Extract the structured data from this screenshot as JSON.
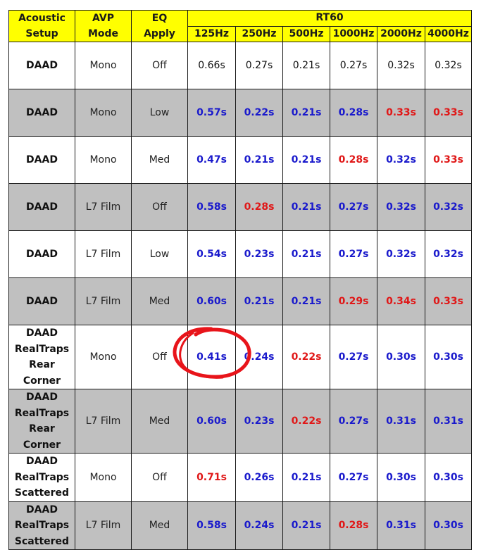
{
  "colors": {
    "header_bg": "#ffff00",
    "shade_bg": "#c0c0c0",
    "blue": "#1a1acc",
    "red": "#e01818",
    "circle": "#e8141a"
  },
  "header": {
    "col1": [
      "Acoustic",
      "Setup"
    ],
    "col2": [
      "AVP",
      "Mode"
    ],
    "col3": [
      "EQ",
      "Apply"
    ],
    "group": "RT60",
    "freqs": [
      "125Hz",
      "250Hz",
      "500Hz",
      "1000Hz",
      "2000Hz",
      "4000Hz"
    ]
  },
  "chart_data": {
    "type": "table",
    "columns": [
      "Acoustic Setup",
      "AVP Mode",
      "EQ Apply",
      "125Hz",
      "250Hz",
      "500Hz",
      "1000Hz",
      "2000Hz",
      "4000Hz"
    ],
    "rows": [
      {
        "setup": [
          "DAAD"
        ],
        "avp": "Mono",
        "eq": "Off",
        "values": [
          "0.66s",
          "0.27s",
          "0.21s",
          "0.27s",
          "0.32s",
          "0.32s"
        ],
        "colors": [
          "plain",
          "plain",
          "plain",
          "plain",
          "plain",
          "plain"
        ]
      },
      {
        "setup": [
          "DAAD"
        ],
        "avp": "Mono",
        "eq": "Low",
        "values": [
          "0.57s",
          "0.22s",
          "0.21s",
          "0.28s",
          "0.33s",
          "0.33s"
        ],
        "colors": [
          "blue",
          "blue",
          "blue",
          "blue",
          "red",
          "red"
        ]
      },
      {
        "setup": [
          "DAAD"
        ],
        "avp": "Mono",
        "eq": "Med",
        "values": [
          "0.47s",
          "0.21s",
          "0.21s",
          "0.28s",
          "0.32s",
          "0.33s"
        ],
        "colors": [
          "blue",
          "blue",
          "blue",
          "red",
          "blue",
          "red"
        ]
      },
      {
        "setup": [
          "DAAD"
        ],
        "avp": "L7 Film",
        "eq": "Off",
        "values": [
          "0.58s",
          "0.28s",
          "0.21s",
          "0.27s",
          "0.32s",
          "0.32s"
        ],
        "colors": [
          "blue",
          "red",
          "blue",
          "blue",
          "blue",
          "blue"
        ]
      },
      {
        "setup": [
          "DAAD"
        ],
        "avp": "L7 Film",
        "eq": "Low",
        "values": [
          "0.54s",
          "0.23s",
          "0.21s",
          "0.27s",
          "0.32s",
          "0.32s"
        ],
        "colors": [
          "blue",
          "blue",
          "blue",
          "blue",
          "blue",
          "blue"
        ]
      },
      {
        "setup": [
          "DAAD"
        ],
        "avp": "L7 Film",
        "eq": "Med",
        "values": [
          "0.60s",
          "0.21s",
          "0.21s",
          "0.29s",
          "0.34s",
          "0.33s"
        ],
        "colors": [
          "blue",
          "blue",
          "blue",
          "red",
          "red",
          "red"
        ]
      },
      {
        "setup": [
          "DAAD",
          "RealTraps",
          "Rear Corner"
        ],
        "avp": "Mono",
        "eq": "Off",
        "values": [
          "0.41s",
          "0.24s",
          "0.22s",
          "0.27s",
          "0.30s",
          "0.30s"
        ],
        "colors": [
          "blue",
          "blue",
          "red",
          "blue",
          "blue",
          "blue"
        ]
      },
      {
        "setup": [
          "DAAD",
          "RealTraps",
          "Rear Corner"
        ],
        "avp": "L7 Film",
        "eq": "Med",
        "values": [
          "0.60s",
          "0.23s",
          "0.22s",
          "0.27s",
          "0.31s",
          "0.31s"
        ],
        "colors": [
          "blue",
          "blue",
          "red",
          "blue",
          "blue",
          "blue"
        ]
      },
      {
        "setup": [
          "DAAD",
          "RealTraps",
          "Scattered"
        ],
        "avp": "Mono",
        "eq": "Off",
        "values": [
          "0.71s",
          "0.26s",
          "0.21s",
          "0.27s",
          "0.30s",
          "0.30s"
        ],
        "colors": [
          "red",
          "blue",
          "blue",
          "blue",
          "blue",
          "blue"
        ]
      },
      {
        "setup": [
          "DAAD",
          "RealTraps",
          "Scattered"
        ],
        "avp": "L7 Film",
        "eq": "Med",
        "values": [
          "0.58s",
          "0.24s",
          "0.21s",
          "0.28s",
          "0.31s",
          "0.30s"
        ],
        "colors": [
          "blue",
          "blue",
          "blue",
          "red",
          "blue",
          "blue"
        ]
      }
    ]
  }
}
